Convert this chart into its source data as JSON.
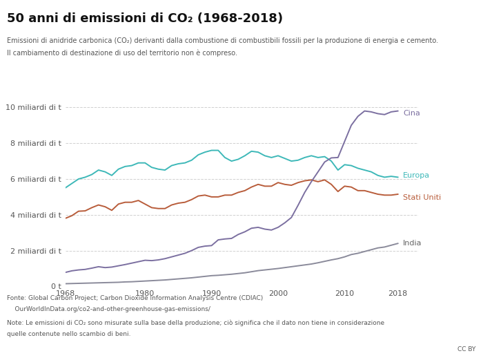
{
  "title_part1": "50 anni di emissioni di CO",
  "title_sub": "2",
  "title_part2": " (1968-2018)",
  "subtitle_line1": "Emissioni di anidride carbonica (CO₂) derivanti dalla combustione di combustibili fossili per la produzione di energia e cemento.",
  "subtitle_line2": "Il cambiamento di destinazione di uso del territorio non è compreso.",
  "footnote_line1": "Fonte: Global Carbon Project; Carbon Dioxide Information Analysis Centre (CDIAC)",
  "footnote_line2": "    OurWorldInData.org/co2-and-other-greenhouse-gas-emissions/",
  "footnote_line3": "Note: Le emissioni di CO₂ sono misurate sulla base della produzione; ciò significa che il dato non tiene in considerazione",
  "footnote_line4": "quelle contenute nello scambio di beni.",
  "cc_by": "CC BY",
  "years": [
    1968,
    1969,
    1970,
    1971,
    1972,
    1973,
    1974,
    1975,
    1976,
    1977,
    1978,
    1979,
    1980,
    1981,
    1982,
    1983,
    1984,
    1985,
    1986,
    1987,
    1988,
    1989,
    1990,
    1991,
    1992,
    1993,
    1994,
    1995,
    1996,
    1997,
    1998,
    1999,
    2000,
    2001,
    2002,
    2003,
    2004,
    2005,
    2006,
    2007,
    2008,
    2009,
    2010,
    2011,
    2012,
    2013,
    2014,
    2015,
    2016,
    2017,
    2018
  ],
  "cina": [
    0.78,
    0.87,
    0.92,
    0.95,
    1.02,
    1.1,
    1.05,
    1.08,
    1.15,
    1.22,
    1.3,
    1.38,
    1.46,
    1.44,
    1.48,
    1.55,
    1.65,
    1.75,
    1.85,
    2.0,
    2.18,
    2.25,
    2.28,
    2.6,
    2.65,
    2.68,
    2.9,
    3.05,
    3.25,
    3.3,
    3.2,
    3.15,
    3.3,
    3.55,
    3.85,
    4.53,
    5.25,
    5.85,
    6.4,
    6.95,
    7.18,
    7.2,
    8.1,
    9.0,
    9.5,
    9.8,
    9.75,
    9.65,
    9.6,
    9.75,
    9.8
  ],
  "europa": [
    5.5,
    5.75,
    6.0,
    6.1,
    6.25,
    6.5,
    6.4,
    6.2,
    6.55,
    6.7,
    6.75,
    6.9,
    6.9,
    6.65,
    6.55,
    6.5,
    6.75,
    6.85,
    6.9,
    7.05,
    7.35,
    7.5,
    7.6,
    7.6,
    7.2,
    7.0,
    7.1,
    7.3,
    7.55,
    7.5,
    7.3,
    7.2,
    7.3,
    7.15,
    7.0,
    7.05,
    7.2,
    7.3,
    7.2,
    7.25,
    7.0,
    6.5,
    6.8,
    6.75,
    6.6,
    6.5,
    6.4,
    6.2,
    6.1,
    6.15,
    6.1
  ],
  "stati_uniti": [
    3.8,
    3.95,
    4.2,
    4.22,
    4.4,
    4.55,
    4.45,
    4.25,
    4.6,
    4.7,
    4.7,
    4.8,
    4.6,
    4.4,
    4.35,
    4.35,
    4.55,
    4.65,
    4.7,
    4.85,
    5.05,
    5.1,
    5.0,
    5.0,
    5.1,
    5.1,
    5.25,
    5.35,
    5.55,
    5.7,
    5.6,
    5.6,
    5.8,
    5.7,
    5.65,
    5.8,
    5.9,
    5.95,
    5.85,
    5.95,
    5.7,
    5.3,
    5.6,
    5.55,
    5.35,
    5.35,
    5.25,
    5.15,
    5.1,
    5.1,
    5.15
  ],
  "india": [
    0.15,
    0.16,
    0.17,
    0.18,
    0.19,
    0.2,
    0.21,
    0.22,
    0.23,
    0.25,
    0.26,
    0.28,
    0.3,
    0.32,
    0.34,
    0.36,
    0.39,
    0.42,
    0.45,
    0.48,
    0.52,
    0.56,
    0.6,
    0.62,
    0.65,
    0.68,
    0.72,
    0.76,
    0.82,
    0.88,
    0.92,
    0.96,
    1.0,
    1.05,
    1.1,
    1.15,
    1.2,
    1.25,
    1.32,
    1.4,
    1.48,
    1.55,
    1.65,
    1.78,
    1.85,
    1.95,
    2.05,
    2.15,
    2.2,
    2.3,
    2.4
  ],
  "color_cina": "#7b6fa0",
  "color_europa": "#3db8b8",
  "color_stati_uniti": "#b85c3a",
  "color_india": "#8a8a9a",
  "bg_color": "#ffffff",
  "grid_color": "#d0d0d0",
  "ytick_labels": [
    "0 t",
    "2 miliardi di t",
    "4 miliardi di t",
    "6 miliardi di t",
    "8 miliardi di t",
    "10 miliardi di t"
  ],
  "ytick_values": [
    0,
    2,
    4,
    6,
    8,
    10
  ],
  "xtick_values": [
    1968,
    1980,
    1990,
    2000,
    2010,
    2018
  ],
  "xlim": [
    1968,
    2021
  ],
  "ylim": [
    0,
    11.0
  ]
}
